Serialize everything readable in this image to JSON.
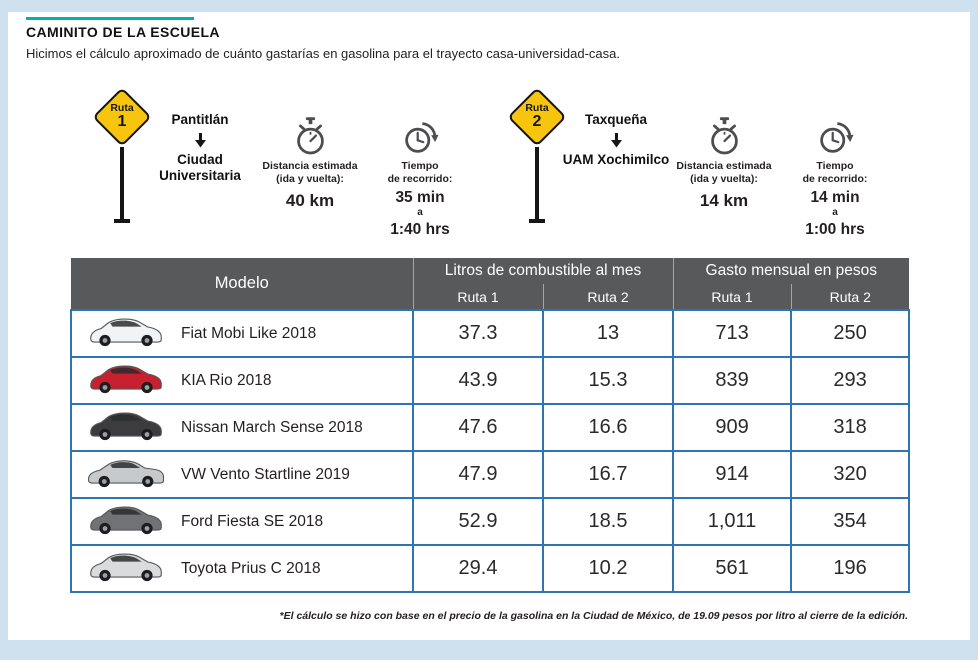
{
  "page": {
    "title": "CAMINITO DE LA ESCUELA",
    "subtitle": "Hicimos el cálculo aproximado de cuánto gastarías en gasolina para el trayecto casa-universidad-casa.",
    "footnote": "*El cálculo se hizo con base en el precio de la gasolina en la Ciudad de México, de 19.09 pesos por litro al cierre de la edición.",
    "colors": {
      "background": "#cfe1ef",
      "accent_teal": "#00b1b4",
      "table_border_blue": "#2e75b6",
      "header_gray": "#58595b",
      "sign_yellow": "#f8c50e"
    }
  },
  "routes": [
    {
      "sign_word": "Ruta",
      "sign_number": "1",
      "origin": "Pantitlán",
      "destination": "Ciudad Universitaria",
      "distance_label_line1": "Distancia estimada",
      "distance_label_line2": "(ida y vuelta):",
      "distance_value": "40 km",
      "time_label_line1": "Tiempo",
      "time_label_line2": "de recorrido:",
      "time_min": "35 min",
      "time_conjunction": "a",
      "time_max": "1:40 hrs"
    },
    {
      "sign_word": "Ruta",
      "sign_number": "2",
      "origin": "Taxqueña",
      "destination": "UAM Xochimilco",
      "distance_label_line1": "Distancia estimada",
      "distance_label_line2": "(ida y vuelta):",
      "distance_value": "14 km",
      "time_label_line1": "Tiempo",
      "time_label_line2": "de recorrido:",
      "time_min": "14 min",
      "time_conjunction": "a",
      "time_max": "1:00 hrs"
    }
  ],
  "table": {
    "col_modelo": "Modelo",
    "col_litros": "Litros de combustible al mes",
    "col_gasto": "Gasto mensual en pesos",
    "sub_ruta1": "Ruta 1",
    "sub_ruta2": "Ruta 2",
    "rows": [
      {
        "model": "Fiat Mobi Like 2018",
        "litros_ruta1": "37.3",
        "litros_ruta2": "13",
        "gasto_ruta1": "713",
        "gasto_ruta2": "250",
        "car_color": "#f2f3f4",
        "car_type": "hatchback"
      },
      {
        "model": "KIA Rio 2018",
        "litros_ruta1": "43.9",
        "litros_ruta2": "15.3",
        "gasto_ruta1": "839",
        "gasto_ruta2": "293",
        "car_color": "#c8202e",
        "car_type": "hatchback"
      },
      {
        "model": "Nissan March Sense 2018",
        "litros_ruta1": "47.6",
        "litros_ruta2": "16.6",
        "gasto_ruta1": "909",
        "gasto_ruta2": "318",
        "car_color": "#3c3c3e",
        "car_type": "hatchback"
      },
      {
        "model": "VW Vento Startline 2019",
        "litros_ruta1": "47.9",
        "litros_ruta2": "16.7",
        "gasto_ruta1": "914",
        "gasto_ruta2": "320",
        "car_color": "#c7cacc",
        "car_type": "sedan"
      },
      {
        "model": "Ford Fiesta SE 2018",
        "litros_ruta1": "52.9",
        "litros_ruta2": "18.5",
        "gasto_ruta1": "1,011",
        "gasto_ruta2": "354",
        "car_color": "#707275",
        "car_type": "hatchback"
      },
      {
        "model": "Toyota Prius C 2018",
        "litros_ruta1": "29.4",
        "litros_ruta2": "10.2",
        "gasto_ruta1": "561",
        "gasto_ruta2": "196",
        "car_color": "#d9dbdd",
        "car_type": "hatchback"
      }
    ]
  },
  "chart_data": {
    "type": "table",
    "title": "CAMINITO DE LA ESCUELA",
    "subtitle": "Hicimos el cálculo aproximado de cuánto gastarías en gasolina para el trayecto casa-universidad-casa.",
    "columns": [
      "Modelo",
      "Litros de combustible al mes - Ruta 1",
      "Litros de combustible al mes - Ruta 2",
      "Gasto mensual en pesos - Ruta 1",
      "Gasto mensual en pesos - Ruta 2"
    ],
    "rows": [
      [
        "Fiat Mobi Like 2018",
        37.3,
        13,
        713,
        250
      ],
      [
        "KIA Rio 2018",
        43.9,
        15.3,
        839,
        293
      ],
      [
        "Nissan March Sense 2018",
        47.6,
        16.6,
        909,
        318
      ],
      [
        "VW Vento Startline 2019",
        47.9,
        16.7,
        914,
        320
      ],
      [
        "Ford Fiesta SE 2018",
        52.9,
        18.5,
        1011,
        354
      ],
      [
        "Toyota Prius C 2018",
        29.4,
        10.2,
        561,
        196
      ]
    ],
    "routes": [
      {
        "name": "Ruta 1",
        "from": "Pantitlán",
        "to": "Ciudad Universitaria",
        "distance_round_trip_km": 40,
        "time_range": "35 min a 1:40 hrs"
      },
      {
        "name": "Ruta 2",
        "from": "Taxqueña",
        "to": "UAM Xochimilco",
        "distance_round_trip_km": 14,
        "time_range": "14 min a 1:00 hrs"
      }
    ],
    "footnote": "*El cálculo se hizo con base en el precio de la gasolina en la Ciudad de México, de 19.09 pesos por litro al cierre de la edición."
  }
}
